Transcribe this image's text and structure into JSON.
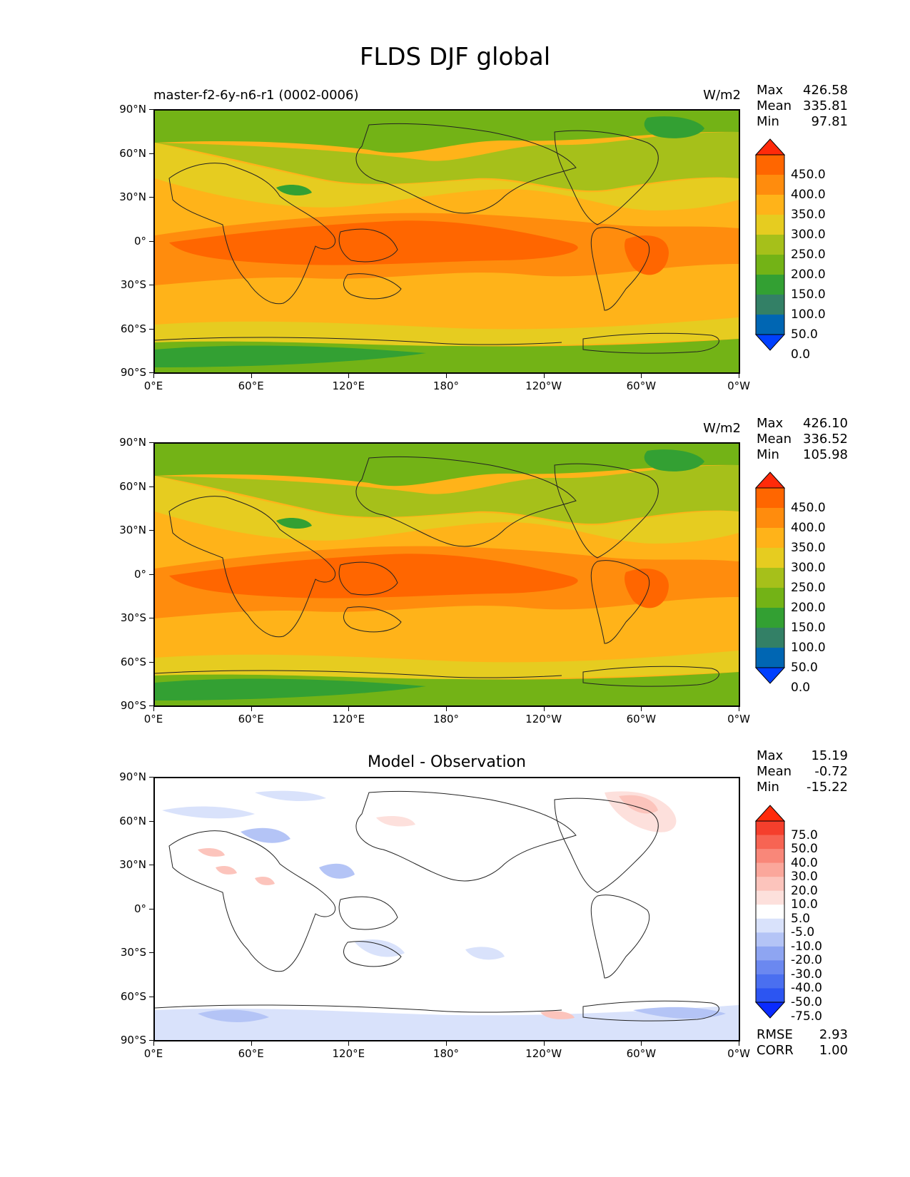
{
  "figure": {
    "title": "FLDS DJF global"
  },
  "axes": {
    "lat_ticks": [
      "90°N",
      "60°N",
      "30°N",
      "0°",
      "30°S",
      "60°S",
      "90°S"
    ],
    "lon_ticks": [
      "0°E",
      "60°E",
      "120°E",
      "180°",
      "120°W",
      "60°W",
      "0°W"
    ]
  },
  "panels": [
    {
      "id": "model",
      "left_title": "master-f2-6y-n6-r1 (0002-0006)",
      "center_title": "",
      "units": "W/m2",
      "stats": [
        {
          "label": "Max",
          "value": "426.58"
        },
        {
          "label": "Mean",
          "value": "335.81"
        },
        {
          "label": "Min",
          "value": "97.81"
        }
      ],
      "colorbar": {
        "colors": [
          "#0040ff",
          "#0066b3",
          "#338066",
          "#33a033",
          "#73b316",
          "#a6c01a",
          "#e6cc20",
          "#ffb319",
          "#ff8c0d",
          "#ff6600",
          "#ff2a0a"
        ],
        "labels": [
          "450.0",
          "400.0",
          "350.0",
          "300.0",
          "250.0",
          "200.0",
          "150.0",
          "100.0",
          "50.0",
          "0.0"
        ]
      },
      "extra_stats": []
    },
    {
      "id": "obs",
      "left_title": "",
      "center_title": "",
      "units": "W/m2",
      "stats": [
        {
          "label": "Max",
          "value": "426.10"
        },
        {
          "label": "Mean",
          "value": "336.52"
        },
        {
          "label": "Min",
          "value": "105.98"
        }
      ],
      "colorbar": {
        "colors": [
          "#0040ff",
          "#0066b3",
          "#338066",
          "#33a033",
          "#73b316",
          "#a6c01a",
          "#e6cc20",
          "#ffb319",
          "#ff8c0d",
          "#ff6600",
          "#ff2a0a"
        ],
        "labels": [
          "450.0",
          "400.0",
          "350.0",
          "300.0",
          "250.0",
          "200.0",
          "150.0",
          "100.0",
          "50.0",
          "0.0"
        ]
      },
      "extra_stats": []
    },
    {
      "id": "diff",
      "left_title": "",
      "center_title": "Model - Observation",
      "units": "",
      "stats": [
        {
          "label": "Max",
          "value": "15.19"
        },
        {
          "label": "Mean",
          "value": "-0.72"
        },
        {
          "label": "Min",
          "value": "-15.22"
        }
      ],
      "colorbar": {
        "colors": [
          "#0a2bff",
          "#2c55f2",
          "#4a6ff0",
          "#6b88f0",
          "#8ea5f2",
          "#b4c4f6",
          "#d9e2fb",
          "#ffffff",
          "#fde0dc",
          "#fcc4bc",
          "#fba79b",
          "#f98779",
          "#f76453",
          "#f53f2c",
          "#ff2a0a"
        ],
        "labels": [
          "75.0",
          "50.0",
          "40.0",
          "30.0",
          "20.0",
          "10.0",
          "5.0",
          "-5.0",
          "-10.0",
          "-20.0",
          "-30.0",
          "-40.0",
          "-50.0",
          "-75.0"
        ]
      },
      "extra_stats": [
        {
          "label": "RMSE",
          "value": "2.93"
        },
        {
          "label": "CORR",
          "value": "1.00"
        }
      ]
    }
  ]
}
